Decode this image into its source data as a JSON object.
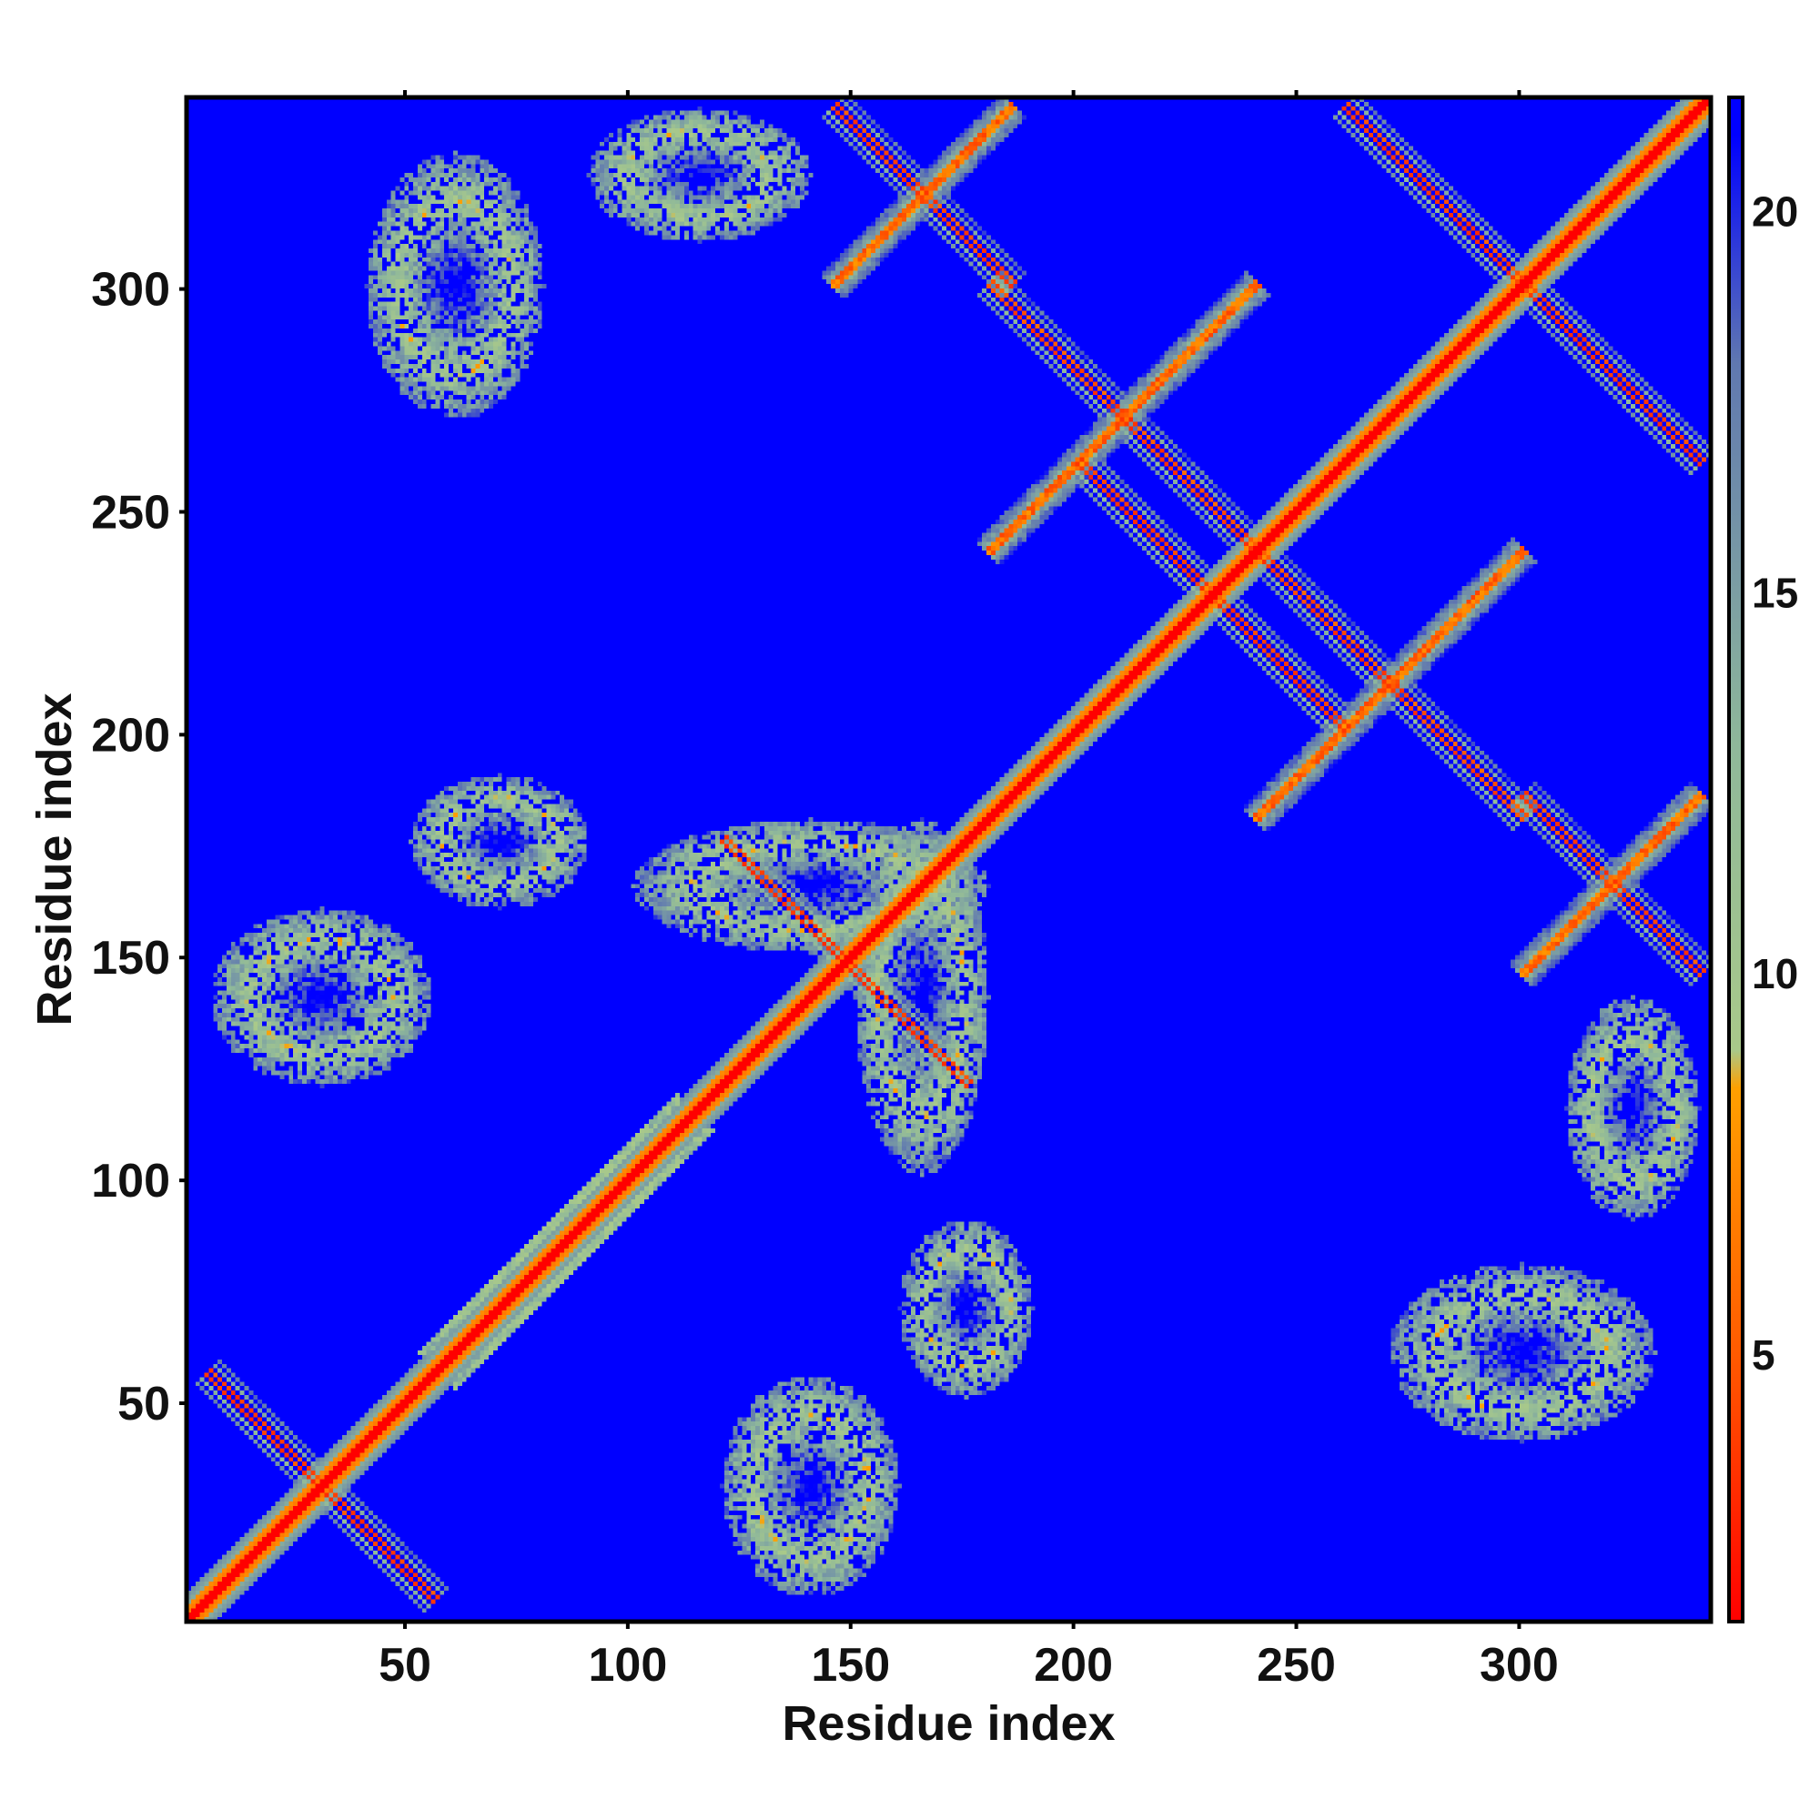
{
  "chart_data": {
    "type": "heatmap",
    "title": "",
    "xlabel": "Residue index",
    "ylabel": "Residue index",
    "xlim": [
      1,
      343
    ],
    "ylim": [
      1,
      343
    ],
    "n_residues": 343,
    "x_ticks": [
      50,
      100,
      150,
      200,
      250,
      300
    ],
    "y_ticks": [
      50,
      100,
      150,
      200,
      250,
      300
    ],
    "value_axis": "distance",
    "diagonal_value": 1.5,
    "background_value": 21,
    "colorbar": {
      "ticks": [
        5,
        10,
        15,
        20
      ],
      "range": [
        1.5,
        21.5
      ],
      "stops": [
        {
          "value": 1.5,
          "color": "#ff0000"
        },
        {
          "value": 5.0,
          "color": "#ff5a00"
        },
        {
          "value": 8.5,
          "color": "#ffa000"
        },
        {
          "value": 9.0,
          "color": "#a9c98a"
        },
        {
          "value": 13.0,
          "color": "#8fb89a"
        },
        {
          "value": 18.0,
          "color": "#6078b0"
        },
        {
          "value": 21.0,
          "color": "#0000ff"
        }
      ]
    },
    "colors": {
      "background": "#0000ff",
      "contact": "#ff0000",
      "near": "#ffa500",
      "mid": "#9fc08f"
    },
    "contact_regions": [
      {
        "type": "antiparallel",
        "i_range": [
          4,
          55
        ],
        "j_range": [
          4,
          55
        ],
        "note": "block near diagonal 1-55"
      },
      {
        "type": "parallel",
        "i_range": [
          60,
          110
        ],
        "j_range": [
          60,
          110
        ]
      },
      {
        "type": "antiparallel",
        "i_range": [
          120,
          175
        ],
        "j_range": [
          120,
          175
        ]
      },
      {
        "type": "antiparallel",
        "i_range": [
          200,
          260
        ],
        "j_range": [
          200,
          260
        ]
      },
      {
        "type": "antiparallel",
        "i_range": [
          260,
          340
        ],
        "j_range": [
          260,
          340
        ]
      },
      {
        "type": "antiparallel",
        "i_range": [
          150,
          180
        ],
        "j_range": [
          300,
          340
        ]
      },
      {
        "type": "antiparallel",
        "i_range": [
          180,
          240
        ],
        "j_range": [
          240,
          300
        ]
      },
      {
        "type": "blob",
        "i_range": [
          100,
          180
        ],
        "j_range": [
          150,
          180
        ]
      },
      {
        "type": "blob",
        "i_range": [
          5,
          55
        ],
        "j_range": [
          120,
          160
        ]
      },
      {
        "type": "blob",
        "i_range": [
          50,
          90
        ],
        "j_range": [
          160,
          190
        ]
      },
      {
        "type": "blob",
        "i_range": [
          270,
          330
        ],
        "j_range": [
          40,
          80
        ]
      },
      {
        "type": "blob",
        "i_range": [
          90,
          140
        ],
        "j_range": [
          310,
          340
        ]
      }
    ]
  }
}
